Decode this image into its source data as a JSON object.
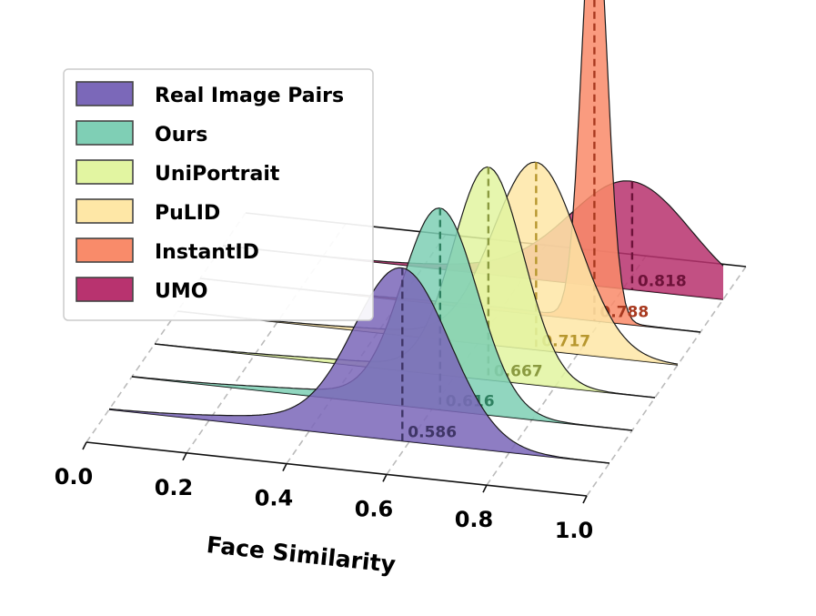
{
  "chart_data": {
    "type": "ridgeline-3d",
    "xlabel": "Face Similarity",
    "xlim": [
      0.0,
      1.0
    ],
    "xticks": [
      "0.0",
      "0.2",
      "0.4",
      "0.6",
      "0.8",
      "1.0"
    ],
    "legend_position": "top-left",
    "grid": true,
    "series": [
      {
        "name": "Real Image Pairs",
        "color": "#7b68b9",
        "edge": "#3f3566",
        "mean": 0.586,
        "mean_label": "0.586",
        "density": {
          "mu": 0.586,
          "sigma": 0.095,
          "peak": 1.0,
          "tail": 0.06
        }
      },
      {
        "name": "Ours",
        "color": "#7fcfb5",
        "edge": "#2e8060",
        "mean": 0.616,
        "mean_label": "0.616",
        "density": {
          "mu": 0.616,
          "sigma": 0.075,
          "peak": 1.18,
          "tail": 0.04
        }
      },
      {
        "name": "UniPortrait",
        "color": "#e2f5a1",
        "edge": "#8a9a40",
        "mean": 0.667,
        "mean_label": "0.667",
        "density": {
          "mu": 0.667,
          "sigma": 0.07,
          "peak": 1.25,
          "tail": 0.03
        }
      },
      {
        "name": "PuLID",
        "color": "#fee7a6",
        "edge": "#b7972e",
        "mean": 0.717,
        "mean_label": "0.717",
        "density": {
          "mu": 0.717,
          "sigma": 0.085,
          "peak": 1.1,
          "tail": 0.03
        }
      },
      {
        "name": "InstantID",
        "color": "#f98b6a",
        "edge": "#a8391f",
        "mean": 0.788,
        "mean_label": "0.788",
        "density": {
          "mu": 0.788,
          "sigma": 0.025,
          "peak": 2.6,
          "tail": 0.02
        }
      },
      {
        "name": "UMO",
        "color": "#b8336f",
        "edge": "#6d1239",
        "mean": 0.818,
        "mean_label": "0.818",
        "density": {
          "mu": 0.818,
          "sigma": 0.12,
          "peak": 0.62,
          "tail": 0.05
        }
      }
    ]
  }
}
